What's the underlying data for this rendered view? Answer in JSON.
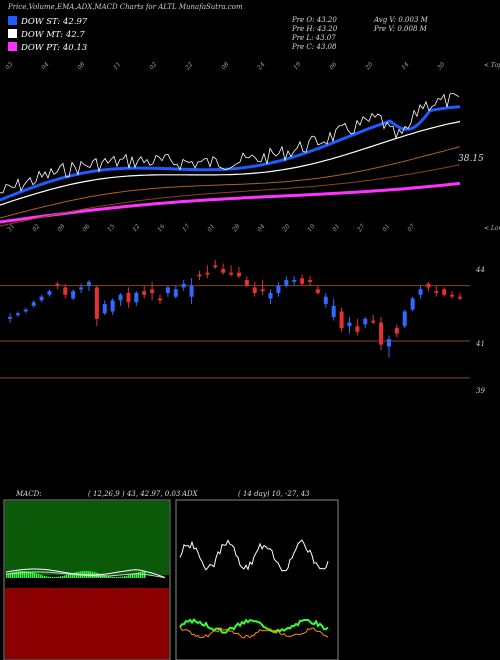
{
  "header": {
    "title": "Price,Volume,EMA,ADX,MACD Charts for ALTL  MunafaSutra.com",
    "legend": [
      {
        "label": "DOW ST: 42.97",
        "color": "#1e5cff"
      },
      {
        "label": "DOW MT: 42.7",
        "color": "#ffffff"
      },
      {
        "label": "DOW PT: 40.13",
        "color": "#ff33ff"
      }
    ],
    "stats": {
      "pre_open": "Pre   O: 43.20",
      "pre_high": "Pre   H: 43.20",
      "pre_low": "Pre   L: 43.07",
      "pre_close": "Pre   C: 43.08",
      "avg_vol": "Avg V: 0.003 M",
      "pre_vol": "Pre   V: 0.008  M"
    }
  },
  "upper": {
    "right_top": "< Tops",
    "right_low": "< Lows",
    "ema_label": "38.15",
    "top_dates": [
      "03",
      "04",
      "08",
      "11",
      "02",
      "22",
      "08",
      "24",
      "19",
      "06",
      "20",
      "14",
      "30"
    ],
    "bottom_dates": [
      "31",
      "02",
      "08",
      "06",
      "15",
      "12",
      "16",
      "17",
      "01",
      "28",
      "04",
      "20",
      "10",
      "01",
      "27",
      "01",
      "07"
    ]
  },
  "price": {
    "levels": [
      {
        "label": "44",
        "value": 44,
        "color": "#8b4513"
      },
      {
        "label": "41",
        "value": 41,
        "color": "#8b4513"
      },
      {
        "label": "39",
        "value": 39,
        "color": "#8b4513"
      }
    ]
  },
  "macd": {
    "label": "MACD:",
    "params": "( 12,26,9 ) 43, 42.97, 0.03"
  },
  "adx": {
    "label": "ADX",
    "params": "( 14  day) 10,  -27,  43"
  },
  "chart_data": {
    "type": "candlestick",
    "title": "Price,Volume,EMA,ADX,MACD Charts for ALTL",
    "ylim": [
      37.8,
      46.2
    ],
    "candles": [
      {
        "o": 42.3,
        "h": 42.5,
        "l": 42.0,
        "c": 42.2,
        "up": true
      },
      {
        "o": 42.5,
        "h": 42.6,
        "l": 42.3,
        "c": 42.4,
        "up": true
      },
      {
        "o": 42.6,
        "h": 42.8,
        "l": 42.5,
        "c": 42.7,
        "up": true
      },
      {
        "o": 42.9,
        "h": 43.2,
        "l": 42.8,
        "c": 43.1,
        "up": true
      },
      {
        "o": 43.2,
        "h": 43.5,
        "l": 43.1,
        "c": 43.4,
        "up": true
      },
      {
        "o": 43.5,
        "h": 43.8,
        "l": 43.4,
        "c": 43.7,
        "up": true
      },
      {
        "o": 44.0,
        "h": 44.2,
        "l": 43.8,
        "c": 44.1,
        "up": false
      },
      {
        "o": 43.9,
        "h": 44.1,
        "l": 43.3,
        "c": 43.5,
        "up": false
      },
      {
        "o": 43.3,
        "h": 43.8,
        "l": 43.2,
        "c": 43.7,
        "up": true
      },
      {
        "o": 43.8,
        "h": 44.1,
        "l": 43.6,
        "c": 43.9,
        "up": true
      },
      {
        "o": 44.0,
        "h": 44.3,
        "l": 43.7,
        "c": 44.2,
        "up": true
      },
      {
        "o": 43.9,
        "h": 44.0,
        "l": 41.8,
        "c": 42.2,
        "up": false
      },
      {
        "o": 42.5,
        "h": 43.2,
        "l": 42.4,
        "c": 43.0,
        "up": true
      },
      {
        "o": 42.6,
        "h": 43.3,
        "l": 42.4,
        "c": 43.2,
        "up": true
      },
      {
        "o": 43.2,
        "h": 43.6,
        "l": 42.9,
        "c": 43.5,
        "up": true
      },
      {
        "o": 43.6,
        "h": 43.9,
        "l": 42.8,
        "c": 43.1,
        "up": false
      },
      {
        "o": 43.1,
        "h": 43.7,
        "l": 42.9,
        "c": 43.6,
        "up": true
      },
      {
        "o": 43.7,
        "h": 44.0,
        "l": 43.3,
        "c": 43.5,
        "up": false
      },
      {
        "o": 43.8,
        "h": 44.2,
        "l": 43.2,
        "c": 43.6,
        "up": false
      },
      {
        "o": 43.3,
        "h": 43.5,
        "l": 43.0,
        "c": 43.2,
        "up": false
      },
      {
        "o": 43.6,
        "h": 44.0,
        "l": 43.4,
        "c": 43.9,
        "up": true
      },
      {
        "o": 43.4,
        "h": 44.0,
        "l": 43.3,
        "c": 43.8,
        "up": true
      },
      {
        "o": 43.9,
        "h": 44.3,
        "l": 43.7,
        "c": 44.1,
        "up": true
      },
      {
        "o": 44.0,
        "h": 44.4,
        "l": 43.0,
        "c": 43.4,
        "up": true
      },
      {
        "o": 44.5,
        "h": 44.8,
        "l": 44.3,
        "c": 44.6,
        "up": false
      },
      {
        "o": 44.7,
        "h": 45.1,
        "l": 44.4,
        "c": 44.6,
        "up": false
      },
      {
        "o": 45.1,
        "h": 45.4,
        "l": 44.9,
        "c": 45.0,
        "up": false
      },
      {
        "o": 44.9,
        "h": 45.2,
        "l": 44.6,
        "c": 44.7,
        "up": false
      },
      {
        "o": 44.7,
        "h": 45.1,
        "l": 44.5,
        "c": 44.6,
        "up": false
      },
      {
        "o": 44.7,
        "h": 45.0,
        "l": 44.4,
        "c": 44.5,
        "up": false
      },
      {
        "o": 44.3,
        "h": 44.5,
        "l": 43.9,
        "c": 44.0,
        "up": false
      },
      {
        "o": 43.9,
        "h": 44.2,
        "l": 43.4,
        "c": 43.6,
        "up": false
      },
      {
        "o": 43.8,
        "h": 44.3,
        "l": 43.5,
        "c": 43.7,
        "up": false
      },
      {
        "o": 43.3,
        "h": 43.8,
        "l": 43.0,
        "c": 43.6,
        "up": true
      },
      {
        "o": 43.6,
        "h": 44.2,
        "l": 43.4,
        "c": 44.0,
        "up": true
      },
      {
        "o": 44.0,
        "h": 44.5,
        "l": 43.9,
        "c": 44.3,
        "up": true
      },
      {
        "o": 44.3,
        "h": 44.5,
        "l": 44.0,
        "c": 44.2,
        "up": true
      },
      {
        "o": 44.4,
        "h": 44.6,
        "l": 44.0,
        "c": 44.1,
        "up": false
      },
      {
        "o": 44.3,
        "h": 44.5,
        "l": 44.0,
        "c": 44.2,
        "up": false
      },
      {
        "o": 43.8,
        "h": 44.0,
        "l": 43.5,
        "c": 43.6,
        "up": false
      },
      {
        "o": 43.0,
        "h": 43.6,
        "l": 42.8,
        "c": 43.4,
        "up": true
      },
      {
        "o": 42.9,
        "h": 43.3,
        "l": 42.1,
        "c": 42.3,
        "up": true
      },
      {
        "o": 42.6,
        "h": 42.8,
        "l": 41.5,
        "c": 41.7,
        "up": false
      },
      {
        "o": 41.8,
        "h": 42.3,
        "l": 41.4,
        "c": 42.0,
        "up": true
      },
      {
        "o": 41.8,
        "h": 42.2,
        "l": 41.3,
        "c": 41.5,
        "up": false
      },
      {
        "o": 41.9,
        "h": 42.3,
        "l": 41.7,
        "c": 42.2,
        "up": true
      },
      {
        "o": 42.0,
        "h": 42.4,
        "l": 41.9,
        "c": 42.1,
        "up": false
      },
      {
        "o": 42.0,
        "h": 42.3,
        "l": 40.5,
        "c": 40.8,
        "up": false
      },
      {
        "o": 40.7,
        "h": 41.3,
        "l": 40.1,
        "c": 41.1,
        "up": true
      },
      {
        "o": 41.4,
        "h": 41.9,
        "l": 41.2,
        "c": 41.7,
        "up": false
      },
      {
        "o": 41.8,
        "h": 42.7,
        "l": 41.7,
        "c": 42.6,
        "up": true
      },
      {
        "o": 42.7,
        "h": 43.4,
        "l": 42.6,
        "c": 43.3,
        "up": true
      },
      {
        "o": 43.5,
        "h": 44.0,
        "l": 43.3,
        "c": 43.8,
        "up": true
      },
      {
        "o": 43.9,
        "h": 44.2,
        "l": 43.7,
        "c": 44.1,
        "up": false
      },
      {
        "o": 43.7,
        "h": 44.0,
        "l": 43.4,
        "c": 43.6,
        "up": false
      },
      {
        "o": 43.8,
        "h": 43.9,
        "l": 43.4,
        "c": 43.5,
        "up": false
      },
      {
        "o": 43.5,
        "h": 43.7,
        "l": 43.3,
        "c": 43.4,
        "up": false
      },
      {
        "o": 43.4,
        "h": 43.6,
        "l": 43.2,
        "c": 43.3,
        "up": false
      }
    ]
  }
}
